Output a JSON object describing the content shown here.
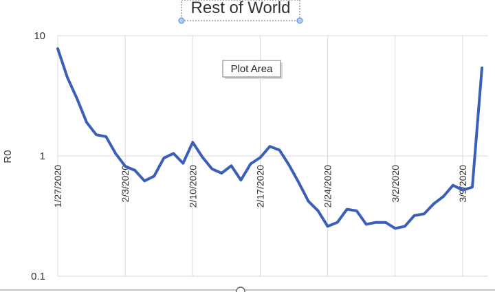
{
  "chart_data": {
    "type": "line",
    "title": "Rest of World",
    "tooltip": "Plot Area",
    "xlabel": "",
    "ylabel": "R0",
    "yscale": "log",
    "ylim": [
      0.1,
      10
    ],
    "y_ticks": [
      "10",
      "1",
      "0.1"
    ],
    "x_tick_labels": [
      "1/27/2020",
      "2/3/2020",
      "2/10/2020",
      "2/17/2020",
      "2/24/2020",
      "3/2/2020",
      "3/9/2020"
    ],
    "grid": true,
    "line_color": "#3a5fb8",
    "series": [
      {
        "x": [
          "1/27/2020",
          "1/28/2020",
          "1/29/2020",
          "1/30/2020",
          "1/31/2020",
          "2/1/2020",
          "2/2/2020",
          "2/3/2020",
          "2/4/2020",
          "2/5/2020",
          "2/6/2020",
          "2/7/2020",
          "2/8/2020",
          "2/9/2020",
          "2/10/2020",
          "2/11/2020",
          "2/12/2020",
          "2/13/2020",
          "2/14/2020",
          "2/15/2020",
          "2/16/2020",
          "2/17/2020",
          "2/18/2020",
          "2/19/2020",
          "2/20/2020",
          "2/21/2020",
          "2/22/2020",
          "2/23/2020",
          "2/24/2020",
          "2/25/2020",
          "2/26/2020",
          "2/27/2020",
          "2/28/2020",
          "2/29/2020",
          "3/1/2020",
          "3/2/2020",
          "3/3/2020",
          "3/4/2020",
          "3/5/2020",
          "3/6/2020",
          "3/7/2020",
          "3/8/2020",
          "3/9/2020",
          "3/10/2020",
          "3/11/2020"
        ],
        "values": [
          7.8,
          4.5,
          3.0,
          1.9,
          1.5,
          1.45,
          1.05,
          0.82,
          0.76,
          0.62,
          0.68,
          0.96,
          1.05,
          0.87,
          1.3,
          0.98,
          0.78,
          0.72,
          0.83,
          0.63,
          0.86,
          0.97,
          1.2,
          1.12,
          0.84,
          0.6,
          0.42,
          0.35,
          0.26,
          0.28,
          0.36,
          0.35,
          0.27,
          0.28,
          0.28,
          0.25,
          0.26,
          0.32,
          0.33,
          0.4,
          0.46,
          0.57,
          0.52,
          0.55,
          5.4
        ]
      }
    ]
  }
}
